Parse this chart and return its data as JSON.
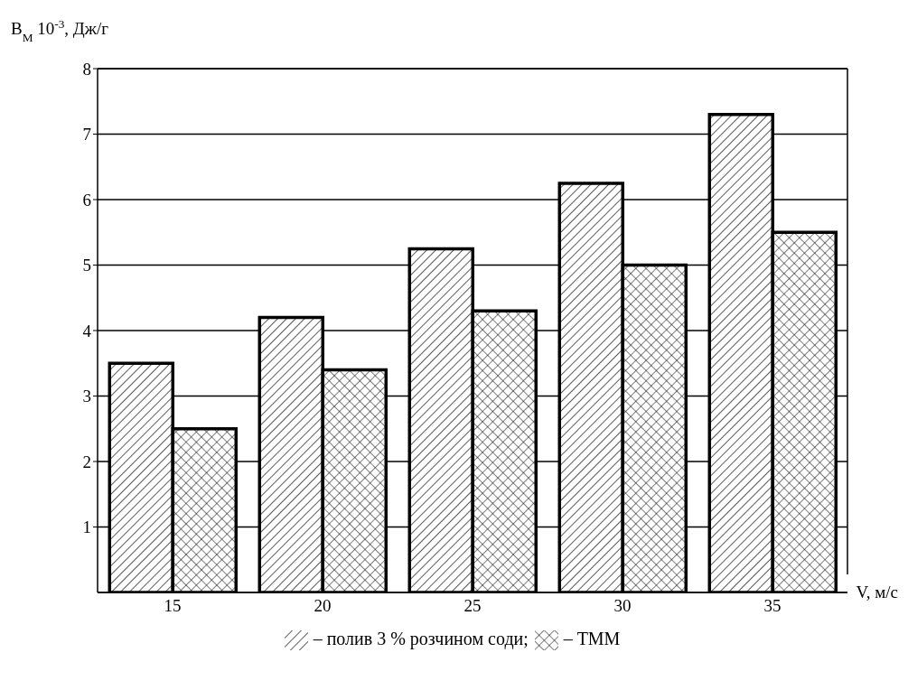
{
  "chart_data": {
    "type": "bar",
    "ylabel": "B$_{M}$ 10$^{-3}$, Дж/г",
    "xlabel": "V, м/с",
    "categories": [
      "15",
      "20",
      "25",
      "30",
      "35"
    ],
    "series": [
      {
        "name": "– полив 3 % розчином соди;",
        "color": "#000000",
        "values": [
          3.5,
          4.2,
          5.25,
          6.25,
          7.3
        ]
      },
      {
        "name": "– ТММ",
        "color": "#000000",
        "values": [
          2.5,
          3.4,
          4.3,
          5.0,
          5.5
        ]
      }
    ],
    "ylim": [
      0,
      8
    ],
    "yticks": [
      1,
      2,
      3,
      4,
      5,
      6,
      7,
      8
    ],
    "grid": "y",
    "legend": "bottom"
  }
}
